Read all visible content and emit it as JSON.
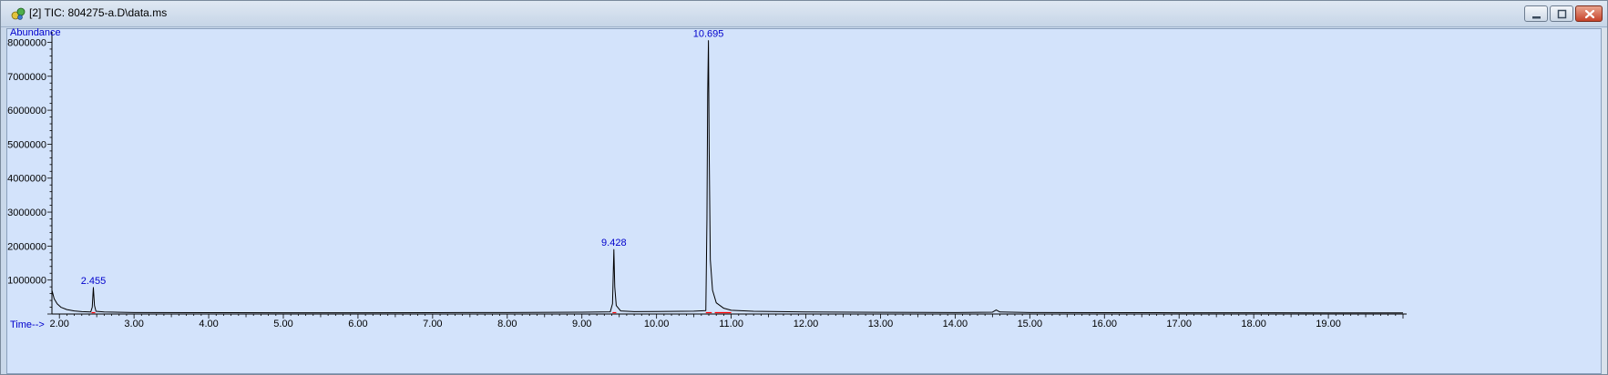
{
  "window": {
    "title": "[2] TIC: 804275-a.D\\data.ms",
    "icons": {
      "app": "chromatogram-app-icon",
      "minimize": "minimize-icon",
      "maximize": "maximize-icon",
      "close": "close-icon"
    }
  },
  "colors": {
    "plot_bg": "#d3e3fb",
    "trace": "#000000",
    "labels": "#0000cc",
    "baseline_marks": "#ff0000"
  },
  "chart_data": {
    "type": "line",
    "ylabel": "Abundance",
    "xlabel": "Time-->",
    "xlim": [
      1.9,
      20.0
    ],
    "ylim": [
      0,
      8200000
    ],
    "x_ticks": [
      "2.00",
      "3.00",
      "4.00",
      "5.00",
      "6.00",
      "7.00",
      "8.00",
      "9.00",
      "10.00",
      "11.00",
      "12.00",
      "13.00",
      "14.00",
      "15.00",
      "16.00",
      "17.00",
      "18.00",
      "19.00"
    ],
    "y_ticks": [
      "1000000",
      "2000000",
      "3000000",
      "4000000",
      "5000000",
      "6000000",
      "7000000",
      "8000000"
    ],
    "grid": false,
    "legend": "none",
    "series": [
      {
        "points": [
          [
            1.9,
            700000
          ],
          [
            1.93,
            450000
          ],
          [
            1.97,
            300000
          ],
          [
            2.02,
            200000
          ],
          [
            2.1,
            130000
          ],
          [
            2.2,
            90000
          ],
          [
            2.3,
            70000
          ],
          [
            2.42,
            60000
          ],
          [
            2.44,
            200000
          ],
          [
            2.455,
            780000
          ],
          [
            2.47,
            250000
          ],
          [
            2.49,
            80000
          ],
          [
            2.6,
            60000
          ],
          [
            3.0,
            45000
          ],
          [
            4.0,
            40000
          ],
          [
            5.0,
            38000
          ],
          [
            6.0,
            38000
          ],
          [
            7.0,
            40000
          ],
          [
            8.0,
            45000
          ],
          [
            9.0,
            55000
          ],
          [
            9.38,
            65000
          ],
          [
            9.41,
            300000
          ],
          [
            9.428,
            1900000
          ],
          [
            9.44,
            800000
          ],
          [
            9.46,
            250000
          ],
          [
            9.52,
            90000
          ],
          [
            9.7,
            70000
          ],
          [
            10.0,
            75000
          ],
          [
            10.5,
            85000
          ],
          [
            10.66,
            100000
          ],
          [
            10.675,
            2800000
          ],
          [
            10.685,
            6500000
          ],
          [
            10.695,
            8050000
          ],
          [
            10.705,
            4800000
          ],
          [
            10.72,
            1600000
          ],
          [
            10.75,
            700000
          ],
          [
            10.8,
            330000
          ],
          [
            10.9,
            170000
          ],
          [
            11.0,
            110000
          ],
          [
            11.3,
            80000
          ],
          [
            12.0,
            60000
          ],
          [
            13.0,
            50000
          ],
          [
            14.0,
            45000
          ],
          [
            14.5,
            55000
          ],
          [
            14.55,
            120000
          ],
          [
            14.6,
            60000
          ],
          [
            15.0,
            45000
          ],
          [
            16.0,
            40000
          ],
          [
            17.0,
            38000
          ],
          [
            18.0,
            36000
          ],
          [
            19.0,
            35000
          ],
          [
            20.0,
            34000
          ]
        ]
      }
    ],
    "peaks": [
      {
        "label": "2.455",
        "x": 2.455,
        "y": 780000
      },
      {
        "label": "9.428",
        "x": 9.428,
        "y": 1900000
      },
      {
        "label": "10.695",
        "x": 10.695,
        "y": 8050000
      }
    ],
    "baseline_marks": [
      [
        2.43,
        2.48
      ],
      [
        9.41,
        9.46
      ],
      [
        10.66,
        10.74
      ],
      [
        10.78,
        11.0
      ]
    ]
  }
}
